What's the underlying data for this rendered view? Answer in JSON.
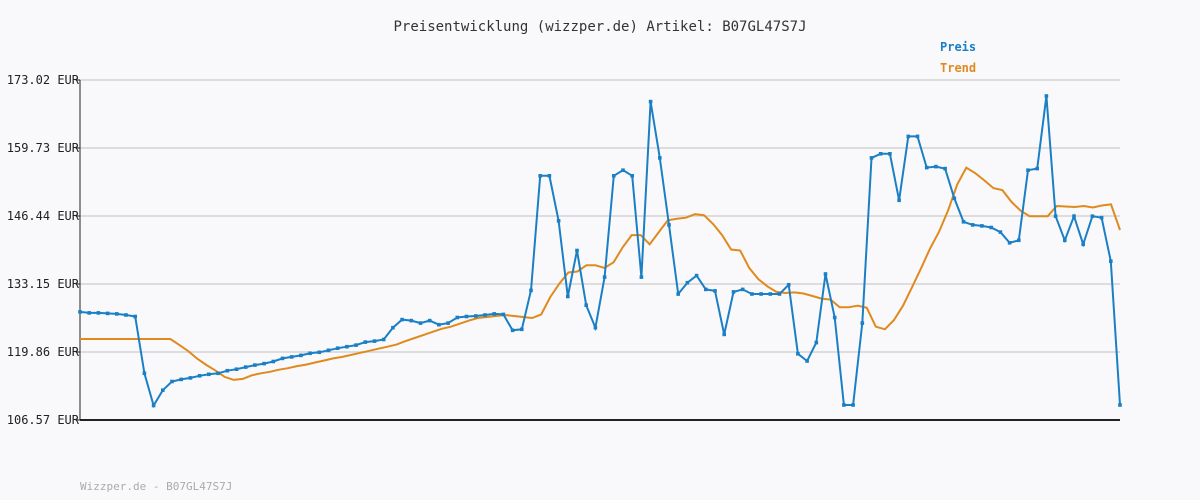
{
  "title": "Preisentwicklung (wizzper.de) Artikel: B07GL47S7J",
  "footer": "Wizzper.de - B07GL47S7J",
  "colors": {
    "price": "#1a7fc4",
    "trend": "#e08a1e",
    "grid": "#dddddd",
    "axis": "#222222"
  },
  "chart_data": {
    "type": "line",
    "title": "Preisentwicklung (wizzper.de) Artikel: B07GL47S7J",
    "ylim": [
      106.57,
      173.02
    ],
    "yticks": [
      "173.02 EUR",
      "159.73 EUR",
      "146.44 EUR",
      "133.15 EUR",
      "119.86 EUR",
      "106.57 EUR"
    ],
    "ytick_values": [
      173.02,
      159.73,
      146.44,
      133.15,
      119.86,
      106.57
    ],
    "grid": true,
    "legend_position": "top-right",
    "series": [
      {
        "name": "Preis",
        "color": "#1a7fc4",
        "markers": true,
        "values": [
          127.7,
          127.5,
          127.5,
          127.4,
          127.3,
          127.1,
          126.8,
          115.7,
          109.4,
          112.4,
          114.1,
          114.5,
          114.8,
          115.2,
          115.5,
          115.7,
          116.2,
          116.5,
          116.9,
          117.3,
          117.6,
          118.0,
          118.6,
          118.9,
          119.2,
          119.6,
          119.8,
          120.2,
          120.6,
          120.9,
          121.2,
          121.8,
          122.0,
          122.3,
          124.6,
          126.2,
          126.0,
          125.5,
          126.0,
          125.2,
          125.5,
          126.6,
          126.8,
          126.9,
          127.1,
          127.3,
          127.2,
          124.1,
          124.3,
          131.9,
          154.3,
          154.3,
          145.5,
          130.7,
          139.7,
          129.0,
          124.6,
          134.5,
          154.3,
          155.4,
          154.3,
          134.5,
          168.8,
          157.8,
          144.7,
          131.2,
          133.4,
          134.8,
          132.1,
          131.8,
          123.3,
          131.6,
          132.1,
          131.2,
          131.2,
          131.2,
          131.2,
          133.0,
          119.5,
          118.1,
          121.7,
          135.1,
          126.6,
          109.5,
          109.5,
          125.5,
          157.8,
          158.6,
          158.6,
          149.5,
          162.0,
          162.0,
          155.9,
          156.1,
          155.7,
          149.9,
          145.3,
          144.7,
          144.5,
          144.2,
          143.3,
          141.2,
          141.7,
          155.4,
          155.7,
          169.9,
          146.4,
          141.7,
          146.4,
          140.9,
          146.4,
          146.1,
          137.6,
          109.5
        ]
      },
      {
        "name": "Trend",
        "color": "#e08a1e",
        "markers": false,
        "values": [
          122.4,
          122.4,
          122.4,
          122.4,
          122.4,
          122.4,
          122.4,
          122.4,
          122.4,
          122.4,
          122.4,
          121.2,
          120.0,
          118.5,
          117.3,
          116.2,
          115.0,
          114.4,
          114.6,
          115.3,
          115.7,
          116.0,
          116.4,
          116.7,
          117.1,
          117.4,
          117.8,
          118.2,
          118.6,
          118.9,
          119.3,
          119.7,
          120.1,
          120.5,
          120.9,
          121.3,
          122.0,
          122.6,
          123.2,
          123.8,
          124.4,
          124.8,
          125.4,
          126.0,
          126.5,
          126.7,
          126.9,
          127.1,
          126.9,
          126.7,
          126.5,
          127.2,
          130.6,
          133.2,
          135.4,
          135.6,
          136.8,
          136.8,
          136.3,
          137.4,
          140.3,
          142.7,
          142.7,
          140.9,
          143.3,
          145.6,
          145.9,
          146.1,
          146.8,
          146.6,
          144.9,
          142.7,
          139.9,
          139.7,
          136.3,
          134.1,
          132.7,
          131.6,
          131.4,
          131.5,
          131.3,
          130.8,
          130.3,
          130.1,
          128.6,
          128.6,
          128.9,
          128.5,
          124.8,
          124.3,
          126.1,
          128.9,
          132.5,
          136.2,
          140.1,
          143.4,
          147.6,
          152.6,
          155.9,
          154.8,
          153.4,
          151.9,
          151.5,
          149.2,
          147.5,
          146.4,
          146.4,
          146.4,
          148.4,
          148.3,
          148.2,
          148.4,
          148.1,
          148.5,
          148.7,
          143.7
        ]
      }
    ]
  }
}
